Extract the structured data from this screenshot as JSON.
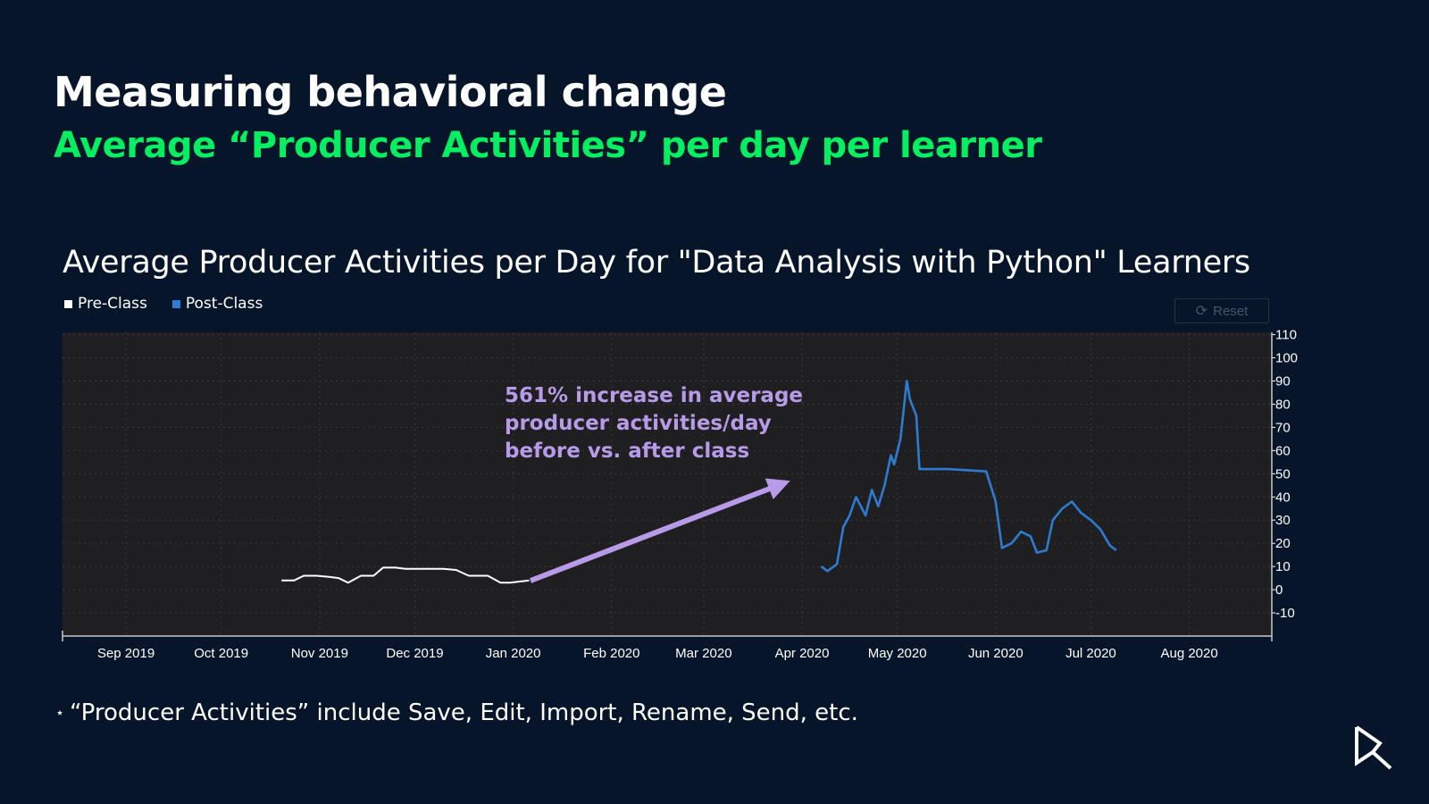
{
  "slide": {
    "title": "Measuring behavioral change",
    "subtitle": "Average “Producer Activities” per day per learner",
    "footnote_star": "⋆",
    "footnote": "“Producer Activities”  include Save, Edit, Import, Rename, Send, etc.",
    "accent_color": "#03ef62",
    "background_color": "#06152a"
  },
  "annotation": {
    "text": "561% increase in average producer activities/day before vs. after class",
    "color": "#b79be8"
  },
  "reset_button": {
    "label": "Reset",
    "icon": "refresh-icon"
  },
  "logo": {
    "icon": "datacamp-logo-icon"
  },
  "chart_data": {
    "type": "line",
    "title": "Average Producer Activities per Day for \"Data Analysis with Python\" Learners",
    "legend_position": "top-left",
    "grid": true,
    "x_tick_labels": [
      "Sep 2019",
      "Oct 2019",
      "Nov 2019",
      "Dec 2019",
      "Jan 2020",
      "Feb 2020",
      "Mar 2020",
      "Apr 2020",
      "May 2020",
      "Jun 2020",
      "Jul 2020",
      "Aug 2020"
    ],
    "x_tick_dates": [
      "2019-09-01",
      "2019-10-01",
      "2019-11-01",
      "2019-12-01",
      "2020-01-01",
      "2020-02-01",
      "2020-03-01",
      "2020-04-01",
      "2020-05-01",
      "2020-06-01",
      "2020-07-01",
      "2020-08-01"
    ],
    "xlim": [
      "2019-08-12",
      "2020-08-27"
    ],
    "y_ticks": [
      -10,
      0,
      10,
      20,
      30,
      40,
      50,
      60,
      70,
      80,
      90,
      100,
      110
    ],
    "ylim": [
      -20,
      111
    ],
    "series": [
      {
        "name": "Pre-Class",
        "color": "#ffffff",
        "x": [
          "2019-10-20",
          "2019-10-24",
          "2019-10-27",
          "2019-10-31",
          "2019-11-04",
          "2019-11-07",
          "2019-11-10",
          "2019-11-14",
          "2019-11-18",
          "2019-11-21",
          "2019-11-25",
          "2019-11-28",
          "2019-12-02",
          "2019-12-06",
          "2019-12-10",
          "2019-12-14",
          "2019-12-18",
          "2019-12-20",
          "2019-12-24",
          "2019-12-28",
          "2019-12-31",
          "2020-01-03",
          "2020-01-06"
        ],
        "y": [
          4,
          4,
          6,
          6,
          5.5,
          5,
          3,
          6,
          6,
          9.5,
          9.5,
          9,
          9,
          9,
          9,
          8.5,
          6,
          6,
          6,
          3,
          3,
          3.5,
          4
        ]
      },
      {
        "name": "Post-Class",
        "color": "#2e7bcf",
        "x": [
          "2020-04-07",
          "2020-04-09",
          "2020-04-12",
          "2020-04-14",
          "2020-04-16",
          "2020-04-18",
          "2020-04-21",
          "2020-04-23",
          "2020-04-25",
          "2020-04-27",
          "2020-04-29",
          "2020-04-30",
          "2020-05-02",
          "2020-05-04",
          "2020-05-05",
          "2020-05-07",
          "2020-05-08",
          "2020-05-10",
          "2020-05-12",
          "2020-05-14",
          "2020-05-17",
          "2020-05-29",
          "2020-06-01",
          "2020-06-03",
          "2020-06-06",
          "2020-06-09",
          "2020-06-12",
          "2020-06-14",
          "2020-06-17",
          "2020-06-19",
          "2020-06-22",
          "2020-06-25",
          "2020-06-28",
          "2020-07-01",
          "2020-07-04",
          "2020-07-07",
          "2020-07-09"
        ],
        "y": [
          10,
          8,
          11,
          27,
          32,
          40,
          32,
          43,
          36,
          45,
          58,
          54,
          65,
          90,
          82,
          75,
          52,
          52,
          52,
          52,
          52,
          51,
          38,
          18,
          20,
          25,
          23,
          16,
          17,
          30,
          35,
          38,
          33,
          30,
          26,
          19,
          17
        ]
      }
    ]
  }
}
